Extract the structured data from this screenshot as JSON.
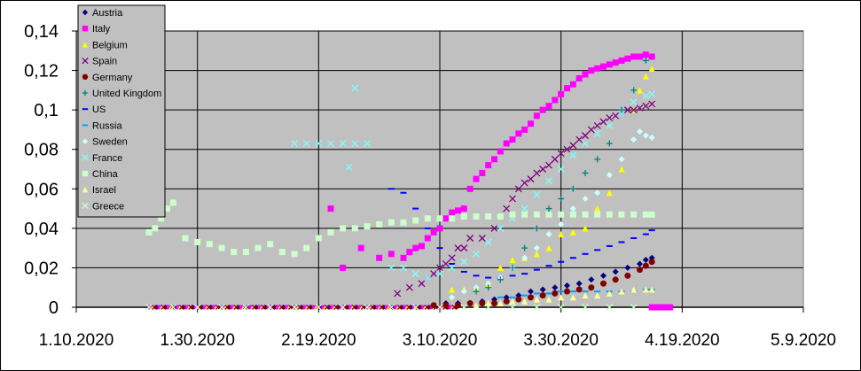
{
  "chart_data": {
    "type": "scatter",
    "xlabel": "",
    "ylabel": "",
    "ylim": [
      0,
      0.14
    ],
    "xlim_days": [
      0,
      120
    ],
    "y_ticks": [
      "0",
      "0,02",
      "0,04",
      "0,06",
      "0,08",
      "0,1",
      "0,12",
      "0,14"
    ],
    "x_ticks": [
      "1.10.2020",
      "1.30.2020",
      "2.19.2020",
      "3.10.2020",
      "3.30.2020",
      "4.19.2020",
      "5.9.2020"
    ],
    "grid": true,
    "legend_position": "top-left",
    "plot_background": "#c0c0c0",
    "series": [
      {
        "name": "Austria",
        "color": "#000080",
        "marker": "diamond",
        "x": [
          61,
          63,
          65,
          67,
          69,
          71,
          73,
          75,
          77,
          79,
          81,
          83,
          85,
          87,
          89,
          91,
          93,
          94,
          95
        ],
        "y": [
          0.002,
          0.002,
          0.002,
          0.003,
          0.004,
          0.005,
          0.006,
          0.008,
          0.009,
          0.01,
          0.011,
          0.012,
          0.014,
          0.016,
          0.018,
          0.02,
          0.022,
          0.024,
          0.025
        ]
      },
      {
        "name": "Italy",
        "color": "#ff00ff",
        "marker": "square",
        "x": [
          42,
          44,
          47,
          50,
          52,
          54,
          55,
          56,
          57,
          58,
          59,
          60,
          61,
          62,
          63,
          64,
          65,
          66,
          67,
          68,
          69,
          70,
          71,
          72,
          73,
          74,
          75,
          76,
          77,
          78,
          79,
          80,
          81,
          82,
          83,
          84,
          85,
          86,
          87,
          88,
          89,
          90,
          91,
          92,
          93,
          94,
          95
        ],
        "y": [
          0.05,
          0.02,
          0.03,
          0.025,
          0.027,
          0.025,
          0.028,
          0.03,
          0.031,
          0.035,
          0.038,
          0.04,
          0.045,
          0.048,
          0.049,
          0.05,
          0.06,
          0.065,
          0.068,
          0.072,
          0.075,
          0.079,
          0.083,
          0.085,
          0.088,
          0.09,
          0.093,
          0.097,
          0.1,
          0.102,
          0.105,
          0.108,
          0.111,
          0.113,
          0.116,
          0.118,
          0.12,
          0.121,
          0.122,
          0.123,
          0.124,
          0.125,
          0.126,
          0.127,
          0.127,
          0.128,
          0.127
        ]
      },
      {
        "name": "Belgium",
        "color": "#ffff00",
        "marker": "triangle",
        "x": [
          62,
          64,
          66,
          68,
          70,
          72,
          74,
          76,
          78,
          80,
          82,
          84,
          86,
          88,
          90,
          92,
          93,
          94,
          95
        ],
        "y": [
          0.009,
          0.009,
          0.01,
          0.012,
          0.02,
          0.024,
          0.025,
          0.027,
          0.03,
          0.037,
          0.038,
          0.04,
          0.05,
          0.058,
          0.07,
          0.1,
          0.11,
          0.117,
          0.121
        ]
      },
      {
        "name": "Spain",
        "color": "#800080",
        "marker": "x",
        "x": [
          53,
          55,
          57,
          58,
          59,
          60,
          61,
          62,
          63,
          64,
          65,
          67,
          69,
          71,
          72,
          73,
          74,
          75,
          76,
          77,
          78,
          79,
          80,
          81,
          82,
          83,
          84,
          85,
          86,
          87,
          88,
          89,
          90,
          91,
          92,
          93,
          94,
          95
        ],
        "y": [
          0.007,
          0.01,
          0.012,
          0.015,
          0.017,
          0.02,
          0.022,
          0.025,
          0.03,
          0.03,
          0.035,
          0.035,
          0.04,
          0.05,
          0.055,
          0.06,
          0.063,
          0.065,
          0.068,
          0.07,
          0.072,
          0.075,
          0.078,
          0.08,
          0.082,
          0.085,
          0.087,
          0.09,
          0.092,
          0.094,
          0.096,
          0.097,
          0.098,
          0.1,
          0.1,
          0.101,
          0.102,
          0.103
        ]
      },
      {
        "name": "Germany",
        "color": "#800000",
        "marker": "circle",
        "x": [
          59,
          61,
          63,
          65,
          67,
          69,
          71,
          73,
          75,
          77,
          79,
          81,
          83,
          85,
          87,
          89,
          91,
          93,
          94,
          95
        ],
        "y": [
          0.001,
          0.001,
          0.001,
          0.002,
          0.002,
          0.002,
          0.003,
          0.004,
          0.005,
          0.006,
          0.007,
          0.008,
          0.009,
          0.01,
          0.012,
          0.014,
          0.016,
          0.019,
          0.021,
          0.023
        ]
      },
      {
        "name": "US",
        "color": "#0000ff",
        "marker": "dash",
        "x": [
          52,
          54,
          56,
          58,
          60,
          62,
          64,
          66,
          68,
          70,
          72,
          74,
          76,
          78,
          80,
          82,
          84,
          86,
          88,
          90,
          92,
          94,
          95
        ],
        "y": [
          0.06,
          0.058,
          0.05,
          0.04,
          0.03,
          0.022,
          0.018,
          0.016,
          0.015,
          0.015,
          0.016,
          0.017,
          0.019,
          0.021,
          0.023,
          0.025,
          0.027,
          0.029,
          0.031,
          0.033,
          0.035,
          0.037,
          0.039
        ]
      },
      {
        "name": "Russia",
        "color": "#00a0ff",
        "marker": "dash",
        "x": [
          70,
          72,
          74,
          76,
          78,
          80,
          82,
          84,
          86,
          88,
          90,
          92,
          94,
          95
        ],
        "y": [
          0.005,
          0.005,
          0.006,
          0.007,
          0.007,
          0.008,
          0.008,
          0.008,
          0.008,
          0.008,
          0.008,
          0.008,
          0.009,
          0.009
        ]
      },
      {
        "name": "Sweden",
        "color": "#ccffff",
        "marker": "diamond",
        "x": [
          62,
          64,
          66,
          68,
          70,
          72,
          74,
          76,
          78,
          80,
          82,
          84,
          86,
          88,
          90,
          92,
          93,
          94,
          95
        ],
        "y": [
          0.005,
          0.008,
          0.01,
          0.012,
          0.015,
          0.02,
          0.025,
          0.03,
          0.037,
          0.042,
          0.05,
          0.055,
          0.058,
          0.067,
          0.075,
          0.085,
          0.089,
          0.087,
          0.086
        ]
      },
      {
        "name": "France",
        "color": "#80ffff",
        "marker": "x",
        "x": [
          52,
          54,
          56,
          58,
          60,
          62,
          64,
          66,
          68,
          70,
          72,
          74,
          76,
          78,
          80,
          82,
          84,
          86,
          88,
          90,
          92,
          94,
          95
        ],
        "y": [
          0.02,
          0.02,
          0.017,
          0.015,
          0.017,
          0.02,
          0.023,
          0.027,
          0.033,
          0.04,
          0.045,
          0.05,
          0.057,
          0.064,
          0.07,
          0.077,
          0.083,
          0.088,
          0.092,
          0.098,
          0.104,
          0.107,
          0.108
        ]
      },
      {
        "name": "China",
        "color": "#ccffcc",
        "marker": "square",
        "x": [
          12,
          13,
          14,
          15,
          16,
          18,
          20,
          22,
          24,
          26,
          28,
          30,
          32,
          34,
          36,
          38,
          40,
          42,
          44,
          46,
          48,
          50,
          52,
          54,
          56,
          58,
          60,
          62,
          64,
          66,
          68,
          70,
          72,
          74,
          76,
          78,
          80,
          82,
          84,
          86,
          88,
          90,
          92,
          94,
          95
        ],
        "y": [
          0.038,
          0.04,
          0.045,
          0.05,
          0.053,
          0.035,
          0.033,
          0.032,
          0.03,
          0.028,
          0.028,
          0.03,
          0.032,
          0.028,
          0.027,
          0.03,
          0.035,
          0.038,
          0.04,
          0.04,
          0.041,
          0.042,
          0.043,
          0.043,
          0.044,
          0.045,
          0.045,
          0.045,
          0.046,
          0.046,
          0.046,
          0.046,
          0.047,
          0.047,
          0.047,
          0.047,
          0.047,
          0.047,
          0.047,
          0.047,
          0.047,
          0.047,
          0.047,
          0.047,
          0.047
        ]
      },
      {
        "name": "Israel",
        "color": "#ffff99",
        "marker": "triangle",
        "x": [
          66,
          68,
          70,
          72,
          74,
          76,
          78,
          80,
          82,
          84,
          86,
          88,
          90,
          92,
          94,
          95
        ],
        "y": [
          0.001,
          0.002,
          0.002,
          0.003,
          0.003,
          0.004,
          0.004,
          0.005,
          0.005,
          0.006,
          0.006,
          0.007,
          0.008,
          0.009,
          0.009,
          0.009
        ]
      },
      {
        "name": "Greece",
        "color": "#ccffcc",
        "marker": "x",
        "x": [
          12,
          16,
          20,
          24,
          28,
          32,
          36,
          40,
          44,
          48,
          52,
          56,
          60,
          64,
          68,
          72,
          76,
          80,
          84,
          88,
          92,
          95,
          96,
          97,
          98
        ],
        "y": [
          0,
          0,
          0,
          0,
          0,
          0,
          0,
          0,
          0,
          0,
          0,
          0,
          0,
          0,
          0,
          0,
          0,
          0,
          0,
          0,
          0,
          0,
          0,
          0,
          0
        ]
      }
    ],
    "extra_points": [
      {
        "series": "France",
        "x": [
          36,
          38,
          40,
          42,
          44,
          46,
          48
        ],
        "y": [
          0.083,
          0.083,
          0.083,
          0.083,
          0.083,
          0.083,
          0.083
        ]
      },
      {
        "series": "France",
        "x": [
          46
        ],
        "y": [
          0.111
        ]
      },
      {
        "series": "France",
        "x": [
          45
        ],
        "y": [
          0.071
        ]
      },
      {
        "series": "United Kingdom",
        "x": [
          66,
          68,
          70,
          72,
          74,
          76,
          78,
          80,
          82,
          84,
          86,
          88,
          90,
          92,
          94
        ],
        "y": [
          0.008,
          0.01,
          0.014,
          0.02,
          0.03,
          0.04,
          0.05,
          0.055,
          0.06,
          0.068,
          0.075,
          0.083,
          0.1,
          0.11,
          0.125
        ]
      },
      {
        "series": "Italy",
        "x": [
          95,
          96,
          97,
          98
        ],
        "y": [
          0,
          0,
          0,
          0
        ]
      }
    ],
    "uk_series": {
      "name": "United Kingdom",
      "color": "#008080",
      "marker": "plus"
    },
    "zero_band_countries": [
      "Austria",
      "Italy",
      "Belgium",
      "Spain",
      "Germany"
    ]
  }
}
